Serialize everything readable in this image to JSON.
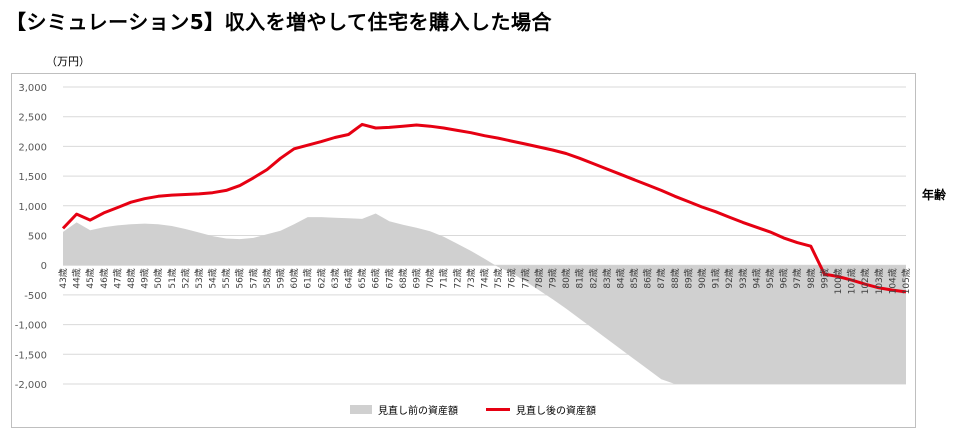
{
  "page": {
    "title": "【シミュレーション5】収入を増やして住宅を購入した場合",
    "y_unit": "（万円）",
    "x_unit": "年齢"
  },
  "colors": {
    "area": "#d0d0d0",
    "line": "#e60012",
    "grid": "#d9d9d9",
    "axis_text": "#595959"
  },
  "chart_data": {
    "type": "line",
    "title": "",
    "xlabel": "年齢",
    "ylabel": "（万円）",
    "ylim": [
      -2000,
      3000
    ],
    "yticks": [
      3000,
      2500,
      2000,
      1500,
      1000,
      500,
      0,
      -500,
      -1000,
      -1500,
      -2000
    ],
    "ytick_labels": [
      "3,000",
      "2,500",
      "2,000",
      "1,500",
      "1,000",
      "500",
      "0",
      "-500",
      "-1,000",
      "-1,500",
      "-2,000"
    ],
    "grid": true,
    "legend_position": "bottom",
    "categories": [
      "43歳",
      "44歳",
      "45歳",
      "46歳",
      "47歳",
      "48歳",
      "49歳",
      "50歳",
      "51歳",
      "52歳",
      "53歳",
      "54歳",
      "55歳",
      "56歳",
      "57歳",
      "58歳",
      "59歳",
      "60歳",
      "61歳",
      "62歳",
      "63歳",
      "64歳",
      "65歳",
      "66歳",
      "67歳",
      "68歳",
      "69歳",
      "70歳",
      "71歳",
      "72歳",
      "73歳",
      "74歳",
      "75歳",
      "76歳",
      "77歳",
      "78歳",
      "79歳",
      "80歳",
      "81歳",
      "82歳",
      "83歳",
      "84歳",
      "85歳",
      "86歳",
      "87歳",
      "88歳",
      "89歳",
      "90歳",
      "91歳",
      "92歳",
      "93歳",
      "94歳",
      "95歳",
      "96歳",
      "97歳",
      "98歳",
      "99歳",
      "100歳",
      "101歳",
      "102歳",
      "103歳",
      "104歳",
      "105歳"
    ],
    "series": [
      {
        "name": "見直し前の資産額",
        "kind": "area",
        "values": [
          560,
          720,
          590,
          640,
          670,
          690,
          700,
          690,
          660,
          610,
          550,
          490,
          450,
          440,
          460,
          520,
          580,
          690,
          810,
          810,
          800,
          790,
          780,
          870,
          740,
          680,
          630,
          570,
          480,
          360,
          240,
          110,
          -30,
          -130,
          -270,
          -420,
          -570,
          -730,
          -900,
          -1070,
          -1240,
          -1410,
          -1580,
          -1750,
          -1920,
          -2000,
          -2000,
          -2000,
          -2000,
          -2000,
          -2000,
          -2000,
          -2000,
          -2000,
          -2000,
          -2000,
          -2000,
          -2000,
          -2000,
          -2000,
          -2000,
          -2000,
          -2000
        ]
      },
      {
        "name": "見直し後の資産額",
        "kind": "line",
        "values": [
          620,
          860,
          760,
          880,
          970,
          1060,
          1120,
          1160,
          1180,
          1190,
          1200,
          1220,
          1260,
          1340,
          1470,
          1610,
          1800,
          1960,
          2020,
          2080,
          2150,
          2200,
          2370,
          2310,
          2320,
          2340,
          2360,
          2340,
          2310,
          2270,
          2230,
          2180,
          2140,
          2090,
          2040,
          1990,
          1940,
          1880,
          1800,
          1710,
          1620,
          1530,
          1440,
          1350,
          1260,
          1160,
          1070,
          980,
          900,
          810,
          720,
          640,
          560,
          460,
          380,
          320,
          -150,
          -190,
          -250,
          -320,
          -380,
          -420,
          -450
        ]
      }
    ]
  }
}
